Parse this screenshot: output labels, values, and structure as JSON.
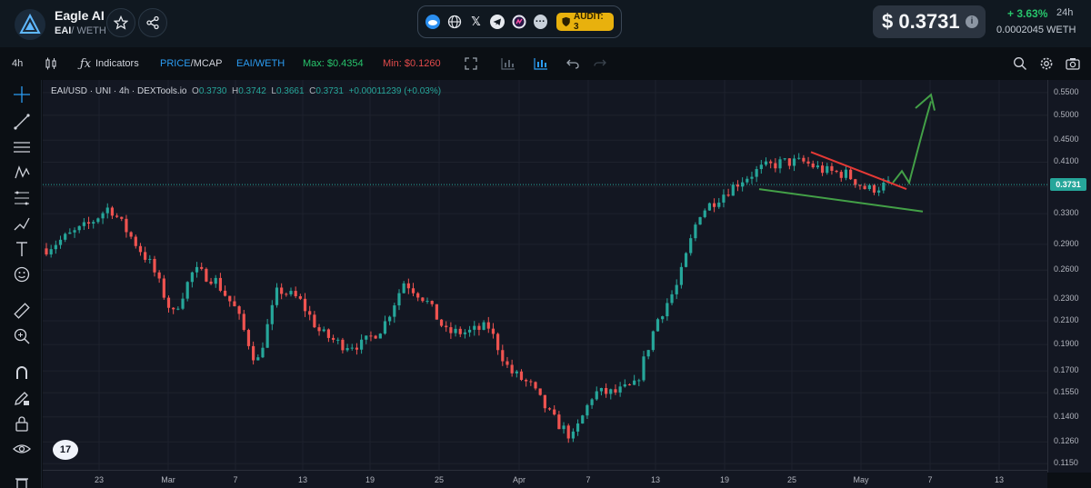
{
  "header": {
    "token_name": "Eagle AI",
    "pair_symbol": "EAI",
    "pair_quote": "/ WETH",
    "audit_label": "AUDIT: 3",
    "price": "$ 0.3731",
    "change_24h": "+ 3.63%",
    "period": "24h",
    "weth_price": "0.0002045  WETH",
    "social_icons": [
      "globe-icon",
      "website-icon",
      "x-icon",
      "telegram-icon",
      "dextools-icon",
      "more-icon"
    ]
  },
  "toolbar": {
    "interval": "4h",
    "indicators": "Indicators",
    "price_mcap_a": "PRICE",
    "price_mcap_sep": "/",
    "price_mcap_b": "MCAP",
    "pair_toggle": "EAI/WETH",
    "max_label": "Max: $0.4354",
    "min_label": "Min: $0.1260"
  },
  "chart_legend": {
    "symbol": "EAI/USD · UNI · 4h · DEXTools.io",
    "open_k": "O",
    "open_v": "0.3730",
    "high_k": "H",
    "high_v": "0.3742",
    "low_k": "L",
    "low_v": "0.3661",
    "close_k": "C",
    "close_v": "0.3731",
    "change": "+0.00011239 (+0.03%)"
  },
  "chart_data": {
    "type": "candlestick",
    "title": "EAI/USD · UNI · 4h · DEXTools.io",
    "price_axis": {
      "scale": "log",
      "ticks": [
        "0.5500",
        "0.5000",
        "0.4500",
        "0.4100",
        "0.3700",
        "0.3300",
        "0.2900",
        "0.2600",
        "0.2300",
        "0.2100",
        "0.1900",
        "0.1700",
        "0.1550",
        "0.1400",
        "0.1260",
        "0.1150"
      ],
      "range": [
        0.112,
        0.58
      ]
    },
    "time_axis": {
      "ticks": [
        "23",
        "Mar",
        "7",
        "13",
        "19",
        "25",
        "Apr",
        "7",
        "13",
        "19",
        "25",
        "May",
        "7",
        "13"
      ]
    },
    "current_price": "0.3731",
    "close_series_approx": [
      {
        "x": "Feb 19",
        "y": 0.285
      },
      {
        "x": "Feb 21",
        "y": 0.3
      },
      {
        "x": "Feb 23",
        "y": 0.315
      },
      {
        "x": "Feb 25",
        "y": 0.34
      },
      {
        "x": "Feb 27",
        "y": 0.3
      },
      {
        "x": "Mar 1",
        "y": 0.265
      },
      {
        "x": "Mar 3",
        "y": 0.215
      },
      {
        "x": "Mar 5",
        "y": 0.26
      },
      {
        "x": "Mar 7",
        "y": 0.25
      },
      {
        "x": "Mar 9",
        "y": 0.22
      },
      {
        "x": "Mar 11",
        "y": 0.175
      },
      {
        "x": "Mar 13",
        "y": 0.24
      },
      {
        "x": "Mar 15",
        "y": 0.23
      },
      {
        "x": "Mar 17",
        "y": 0.2
      },
      {
        "x": "Mar 19",
        "y": 0.19
      },
      {
        "x": "Mar 21",
        "y": 0.19
      },
      {
        "x": "Mar 23",
        "y": 0.205
      },
      {
        "x": "Mar 25",
        "y": 0.248
      },
      {
        "x": "Mar 27",
        "y": 0.23
      },
      {
        "x": "Mar 29",
        "y": 0.2
      },
      {
        "x": "Mar 31",
        "y": 0.2
      },
      {
        "x": "Apr 2",
        "y": 0.205
      },
      {
        "x": "Apr 4",
        "y": 0.17
      },
      {
        "x": "Apr 6",
        "y": 0.16
      },
      {
        "x": "Apr 8",
        "y": 0.14
      },
      {
        "x": "Apr 9",
        "y": 0.128
      },
      {
        "x": "Apr 11",
        "y": 0.155
      },
      {
        "x": "Apr 13",
        "y": 0.155
      },
      {
        "x": "Apr 15",
        "y": 0.16
      },
      {
        "x": "Apr 16",
        "y": 0.21
      },
      {
        "x": "Apr 17",
        "y": 0.245
      },
      {
        "x": "Apr 18",
        "y": 0.33
      },
      {
        "x": "Apr 20",
        "y": 0.355
      },
      {
        "x": "Apr 21",
        "y": 0.38
      },
      {
        "x": "Apr 23",
        "y": 0.4
      },
      {
        "x": "Apr 25",
        "y": 0.41
      },
      {
        "x": "Apr 27",
        "y": 0.41
      },
      {
        "x": "Apr 29",
        "y": 0.395
      },
      {
        "x": "May 1",
        "y": 0.39
      },
      {
        "x": "May 2",
        "y": 0.365
      },
      {
        "x": "May 3",
        "y": 0.3731
      }
    ],
    "annotations": [
      {
        "type": "trendline",
        "color": "#e53935",
        "desc": "upper descending trendline (red)"
      },
      {
        "type": "trendline",
        "color": "#43a047",
        "desc": "lower descending trendline (green)"
      },
      {
        "type": "arrow",
        "color": "#43a047",
        "desc": "projected breakout arrow up (green)"
      }
    ],
    "up_color": "#26a69a",
    "down_color": "#ef5350"
  },
  "colors": {
    "accent_blue": "#2b9cf2",
    "positive": "#27c46b",
    "negative": "#e24b4b",
    "audit": "#e8b10d"
  }
}
